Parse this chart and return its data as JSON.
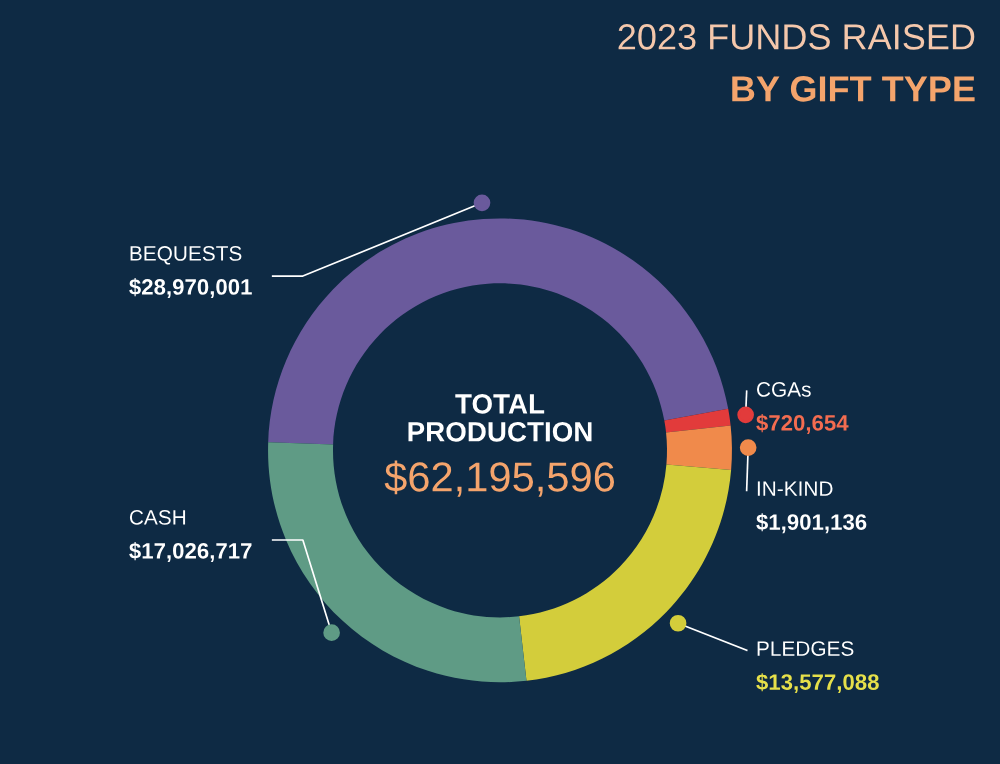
{
  "chart_data": {
    "type": "donut",
    "title": "2023 FUNDS RAISED",
    "subtitle": "BY GIFT TYPE",
    "categories": [
      "BEQUESTS",
      "CGAs",
      "IN-KIND",
      "PLEDGES",
      "CASH"
    ],
    "values": [
      28970001,
      720654,
      1901136,
      13577088,
      17026717
    ],
    "colors": [
      "#6a5a9c",
      "#e23b3b",
      "#f08a4b",
      "#d3cd3b",
      "#5f9b85"
    ],
    "value_labels": [
      "$28,970,001",
      "$720,654",
      "$1,901,136",
      "$13,577,088",
      "$17,026,717"
    ],
    "annotations": [
      "TOTAL\nPRODUCTION",
      "$62,195,596"
    ],
    "legend": false
  }
}
